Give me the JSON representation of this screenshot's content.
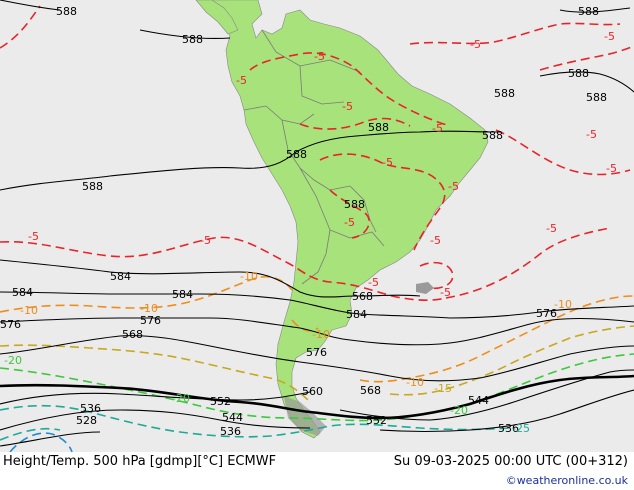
{
  "colors": {
    "ocean": "#ebebeb",
    "land": "#a8e27a",
    "height_contour": "#000000",
    "temp_minus5": "#e8242a",
    "temp_minus10": "#f08c1a",
    "temp_minus15": "#c8a81e",
    "temp_minus20": "#3cc83c",
    "temp_minus25": "#1eaa96",
    "temp_minus30": "#1e8cd2",
    "credit": "#1a2f9e"
  },
  "footer": {
    "title": "Height/Temp. 500 hPa [gdmp][°C] ECMWF",
    "valid_time": "Su 09-03-2025 00:00 UTC (00+312)",
    "credit": "©weatheronline.co.uk"
  },
  "height_labels": [
    "588",
    "588",
    "588",
    "588",
    "588",
    "588",
    "588",
    "588",
    "588",
    "588",
    "588",
    "584",
    "584",
    "584",
    "584",
    "576",
    "576",
    "576",
    "576",
    "568",
    "568",
    "568",
    "560",
    "552",
    "552",
    "544",
    "544",
    "536",
    "536",
    "536",
    "528"
  ],
  "temp_labels": [
    "-5",
    "-5",
    "-5",
    "-5",
    "-5",
    "-5",
    "-5",
    "-5",
    "-5",
    "-5",
    "-5",
    "-5",
    "-5",
    "-5",
    "-5",
    "-5",
    "-5",
    "-10",
    "-10",
    "-10",
    "-10",
    "-10",
    "-10",
    "-15",
    "-20",
    "-20",
    "-20",
    "-25"
  ]
}
